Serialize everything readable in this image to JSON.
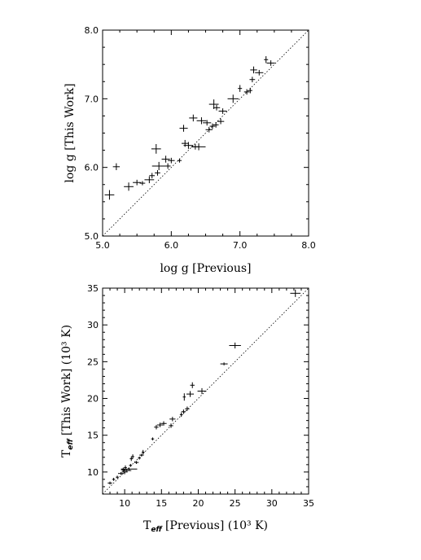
{
  "chart_data": [
    {
      "type": "scatter",
      "xlabel": "log g [Previous]",
      "ylabel": "log g [This Work]",
      "xlim": [
        5.0,
        8.0
      ],
      "ylim": [
        5.0,
        8.0
      ],
      "x_ticks": [
        "5.0",
        "6.0",
        "7.0",
        "8.0"
      ],
      "y_ticks": [
        "5.0",
        "6.0",
        "7.0",
        "8.0"
      ],
      "one_to_one_line": true,
      "points": [
        {
          "x": 5.1,
          "y": 5.6,
          "ex": 0.07,
          "ey": 0.07
        },
        {
          "x": 5.2,
          "y": 6.01,
          "ex": 0.05,
          "ey": 0.05
        },
        {
          "x": 5.38,
          "y": 5.72,
          "ex": 0.07,
          "ey": 0.06
        },
        {
          "x": 5.5,
          "y": 5.78,
          "ex": 0.06,
          "ey": 0.04
        },
        {
          "x": 5.58,
          "y": 5.77,
          "ex": 0.04,
          "ey": 0.03
        },
        {
          "x": 5.68,
          "y": 5.82,
          "ex": 0.07,
          "ey": 0.05
        },
        {
          "x": 5.72,
          "y": 5.88,
          "ex": 0.04,
          "ey": 0.04
        },
        {
          "x": 5.78,
          "y": 6.27,
          "ex": 0.07,
          "ey": 0.07
        },
        {
          "x": 5.8,
          "y": 5.92,
          "ex": 0.04,
          "ey": 0.04
        },
        {
          "x": 5.82,
          "y": 6.02,
          "ex": 0.1,
          "ey": 0.06
        },
        {
          "x": 5.92,
          "y": 6.12,
          "ex": 0.06,
          "ey": 0.05
        },
        {
          "x": 5.95,
          "y": 6.02,
          "ex": 0.04,
          "ey": 0.04
        },
        {
          "x": 6.0,
          "y": 6.1,
          "ex": 0.05,
          "ey": 0.04
        },
        {
          "x": 6.12,
          "y": 6.1,
          "ex": 0.03,
          "ey": 0.03
        },
        {
          "x": 6.18,
          "y": 6.57,
          "ex": 0.06,
          "ey": 0.05
        },
        {
          "x": 6.2,
          "y": 6.35,
          "ex": 0.05,
          "ey": 0.05
        },
        {
          "x": 6.25,
          "y": 6.32,
          "ex": 0.07,
          "ey": 0.05
        },
        {
          "x": 6.32,
          "y": 6.72,
          "ex": 0.06,
          "ey": 0.05
        },
        {
          "x": 6.35,
          "y": 6.3,
          "ex": 0.06,
          "ey": 0.04
        },
        {
          "x": 6.4,
          "y": 6.3,
          "ex": 0.1,
          "ey": 0.05
        },
        {
          "x": 6.44,
          "y": 6.68,
          "ex": 0.07,
          "ey": 0.05
        },
        {
          "x": 6.52,
          "y": 6.65,
          "ex": 0.06,
          "ey": 0.04
        },
        {
          "x": 6.55,
          "y": 6.55,
          "ex": 0.05,
          "ey": 0.04
        },
        {
          "x": 6.62,
          "y": 6.92,
          "ex": 0.07,
          "ey": 0.07
        },
        {
          "x": 6.6,
          "y": 6.6,
          "ex": 0.04,
          "ey": 0.04
        },
        {
          "x": 6.65,
          "y": 6.62,
          "ex": 0.04,
          "ey": 0.04
        },
        {
          "x": 6.66,
          "y": 6.87,
          "ex": 0.05,
          "ey": 0.04
        },
        {
          "x": 6.72,
          "y": 6.67,
          "ex": 0.05,
          "ey": 0.04
        },
        {
          "x": 6.75,
          "y": 6.82,
          "ex": 0.06,
          "ey": 0.04
        },
        {
          "x": 6.9,
          "y": 7.0,
          "ex": 0.08,
          "ey": 0.06
        },
        {
          "x": 7.0,
          "y": 7.15,
          "ex": 0.03,
          "ey": 0.05
        },
        {
          "x": 7.1,
          "y": 7.1,
          "ex": 0.04,
          "ey": 0.04
        },
        {
          "x": 7.15,
          "y": 7.12,
          "ex": 0.03,
          "ey": 0.04
        },
        {
          "x": 7.18,
          "y": 7.28,
          "ex": 0.04,
          "ey": 0.04
        },
        {
          "x": 7.2,
          "y": 7.42,
          "ex": 0.05,
          "ey": 0.05
        },
        {
          "x": 7.28,
          "y": 7.38,
          "ex": 0.06,
          "ey": 0.04
        },
        {
          "x": 7.38,
          "y": 7.57,
          "ex": 0.03,
          "ey": 0.05
        },
        {
          "x": 7.45,
          "y": 7.52,
          "ex": 0.06,
          "ey": 0.04
        }
      ]
    },
    {
      "type": "scatter",
      "xlabel": "[Previous] (10³ K)",
      "ylabel": "[This Work] (10³ K)",
      "label_symbol": "T",
      "label_subscript": "eff",
      "xlim": [
        7,
        35
      ],
      "ylim": [
        7,
        35
      ],
      "x_ticks": [
        "10",
        "15",
        "20",
        "25",
        "30",
        "35"
      ],
      "y_ticks": [
        "10",
        "15",
        "20",
        "25",
        "30",
        "35"
      ],
      "one_to_one_line": true,
      "points": [
        {
          "x": 8.0,
          "y": 8.5,
          "ex": 0.3,
          "ey": 0.2
        },
        {
          "x": 8.5,
          "y": 9.0,
          "ex": 0.2,
          "ey": 0.2
        },
        {
          "x": 9.0,
          "y": 9.3,
          "ex": 0.2,
          "ey": 0.2
        },
        {
          "x": 9.5,
          "y": 9.8,
          "ex": 0.4,
          "ey": 0.2
        },
        {
          "x": 9.8,
          "y": 10.3,
          "ex": 0.3,
          "ey": 0.3
        },
        {
          "x": 10.0,
          "y": 10.0,
          "ex": 0.4,
          "ey": 0.3
        },
        {
          "x": 10.1,
          "y": 10.6,
          "ex": 0.2,
          "ey": 0.3
        },
        {
          "x": 10.3,
          "y": 10.2,
          "ex": 0.6,
          "ey": 0.2
        },
        {
          "x": 10.6,
          "y": 10.4,
          "ex": 1.1,
          "ey": 0.2
        },
        {
          "x": 10.8,
          "y": 10.9,
          "ex": 0.2,
          "ey": 0.2
        },
        {
          "x": 10.9,
          "y": 11.8,
          "ex": 0.2,
          "ey": 0.3
        },
        {
          "x": 11.1,
          "y": 12.1,
          "ex": 0.2,
          "ey": 0.3
        },
        {
          "x": 11.6,
          "y": 11.3,
          "ex": 0.3,
          "ey": 0.2
        },
        {
          "x": 12.0,
          "y": 11.9,
          "ex": 0.2,
          "ey": 0.2
        },
        {
          "x": 12.3,
          "y": 12.3,
          "ex": 0.3,
          "ey": 0.2
        },
        {
          "x": 12.5,
          "y": 12.7,
          "ex": 0.2,
          "ey": 0.3
        },
        {
          "x": 13.8,
          "y": 14.5,
          "ex": 0.2,
          "ey": 0.2
        },
        {
          "x": 14.3,
          "y": 16.1,
          "ex": 0.3,
          "ey": 0.3
        },
        {
          "x": 14.8,
          "y": 16.4,
          "ex": 0.4,
          "ey": 0.3
        },
        {
          "x": 15.3,
          "y": 16.6,
          "ex": 0.4,
          "ey": 0.3
        },
        {
          "x": 16.3,
          "y": 16.3,
          "ex": 0.3,
          "ey": 0.3
        },
        {
          "x": 16.5,
          "y": 17.2,
          "ex": 0.4,
          "ey": 0.3
        },
        {
          "x": 17.7,
          "y": 17.8,
          "ex": 0.2,
          "ey": 0.3
        },
        {
          "x": 18.0,
          "y": 18.2,
          "ex": 0.3,
          "ey": 0.3
        },
        {
          "x": 18.1,
          "y": 20.2,
          "ex": 0.2,
          "ey": 0.5
        },
        {
          "x": 18.5,
          "y": 18.6,
          "ex": 0.3,
          "ey": 0.3
        },
        {
          "x": 18.9,
          "y": 20.6,
          "ex": 0.5,
          "ey": 0.4
        },
        {
          "x": 19.2,
          "y": 21.8,
          "ex": 0.3,
          "ey": 0.4
        },
        {
          "x": 20.5,
          "y": 21.0,
          "ex": 0.6,
          "ey": 0.4
        },
        {
          "x": 23.5,
          "y": 24.7,
          "ex": 0.5,
          "ey": 0.2
        },
        {
          "x": 25.0,
          "y": 27.2,
          "ex": 0.8,
          "ey": 0.4
        },
        {
          "x": 33.2,
          "y": 34.3,
          "ex": 0.7,
          "ey": 0.5
        }
      ]
    }
  ]
}
